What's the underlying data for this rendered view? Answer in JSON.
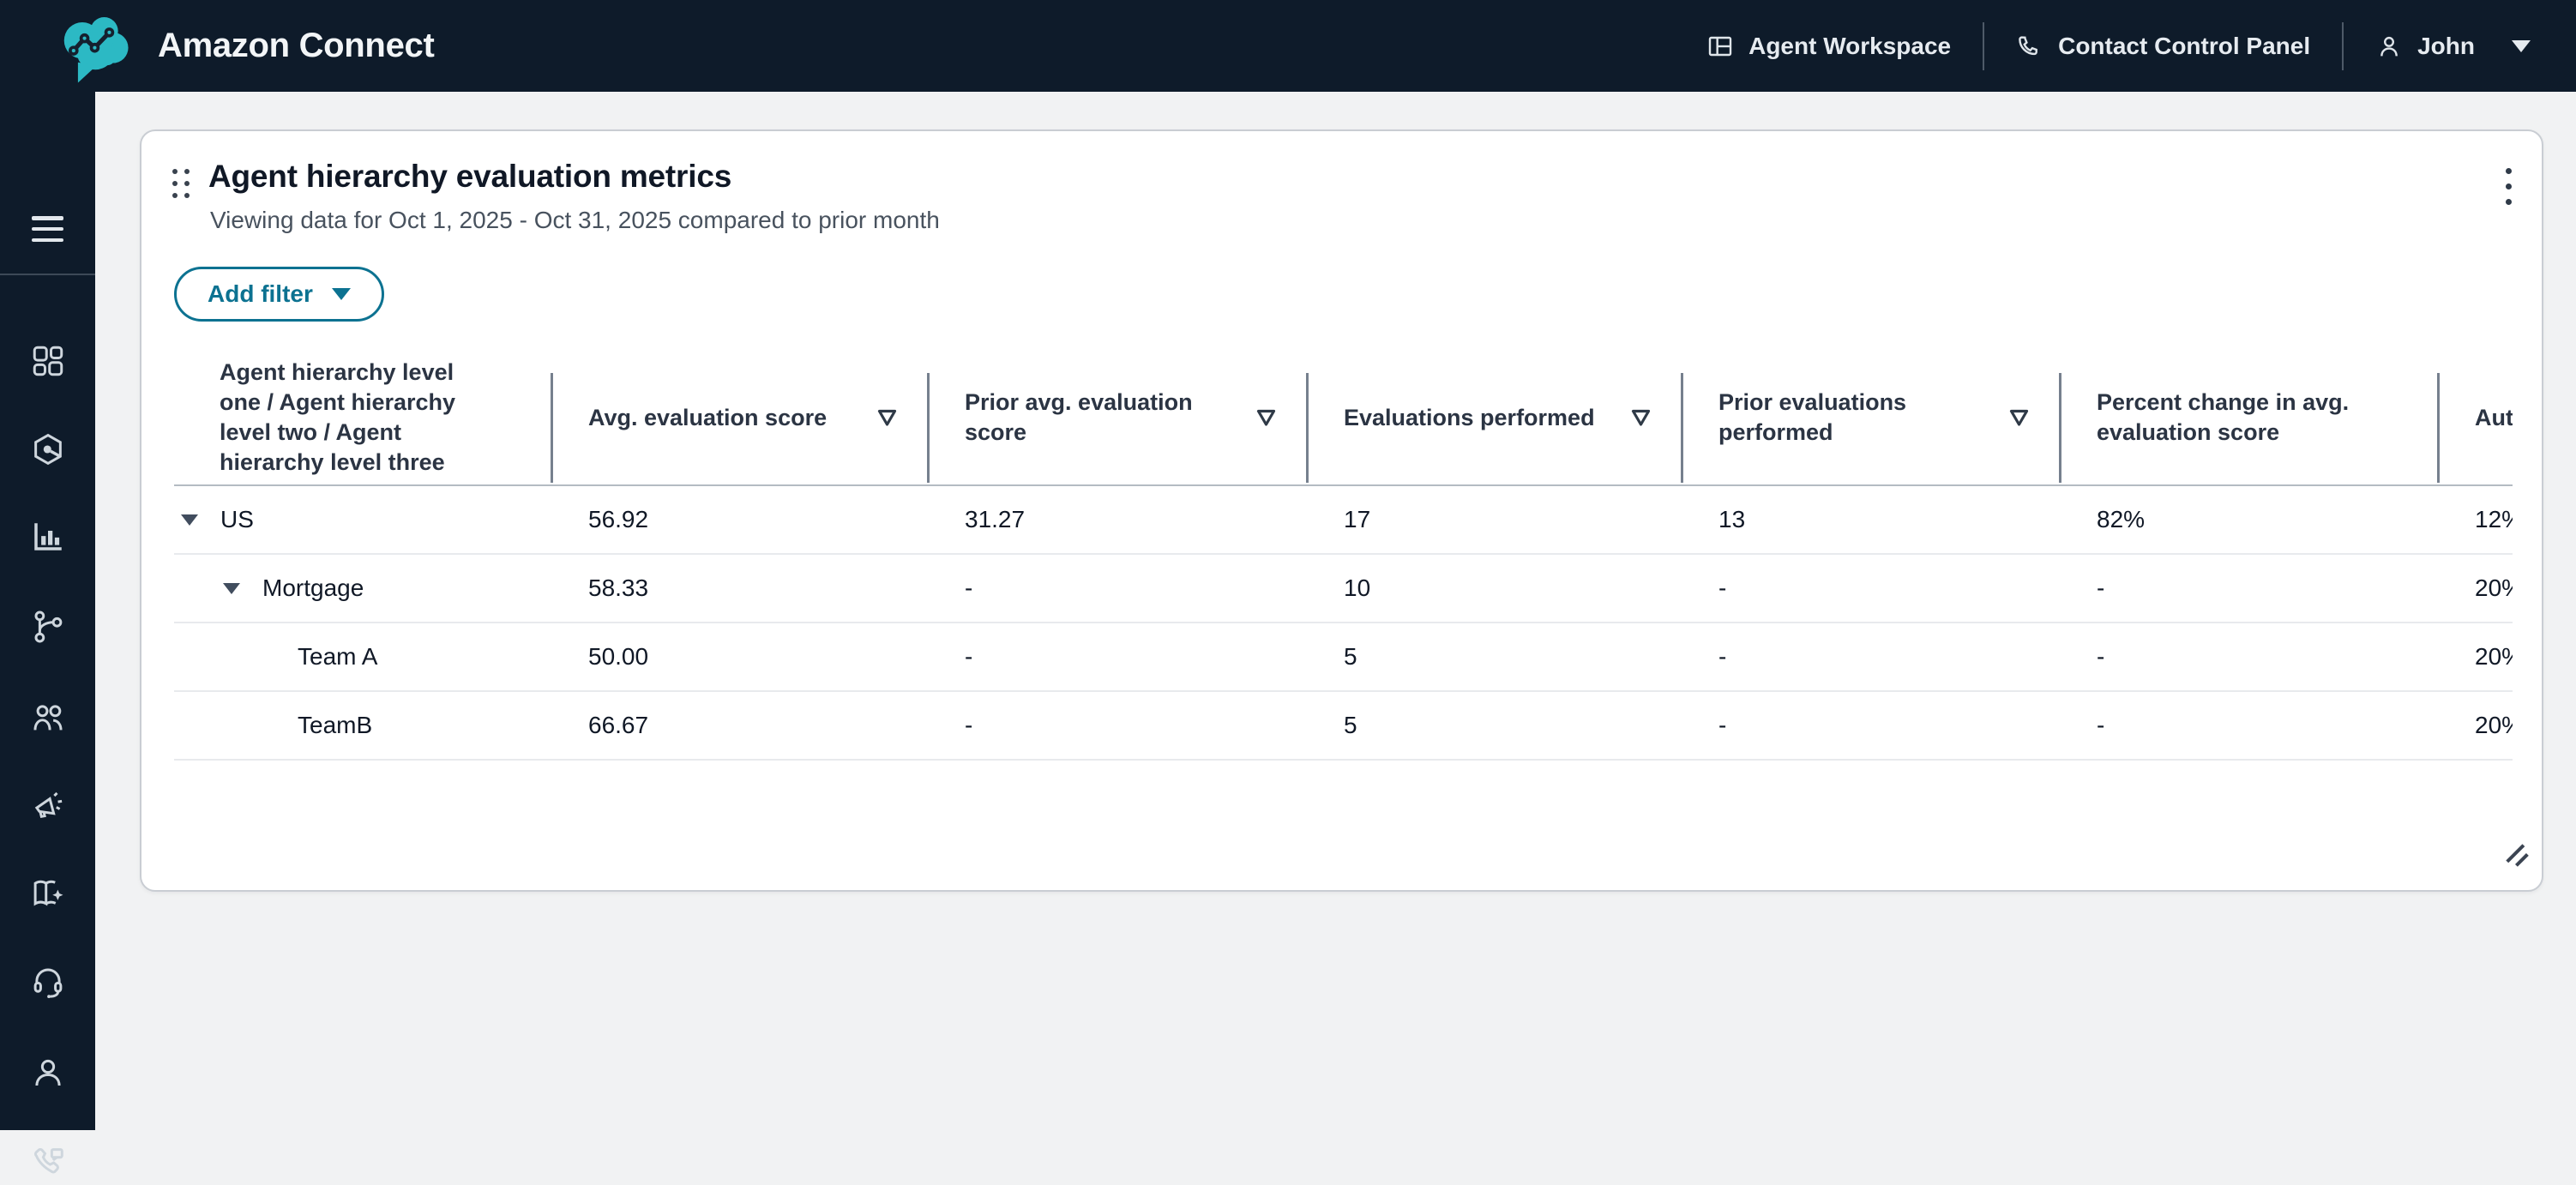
{
  "brand": {
    "name": "Amazon Connect"
  },
  "topnav": {
    "agent_workspace_label": "Agent Workspace",
    "contact_control_panel_label": "Contact Control Panel",
    "user_name": "John"
  },
  "sidebar": {
    "items": [
      "dashboard-grid",
      "routing-hexagon",
      "metrics-bar-chart",
      "flows-branch",
      "users-group",
      "campaigns-megaphone",
      "knowledge-book",
      "headset",
      "profile-person",
      "contact-phone-message"
    ]
  },
  "widget": {
    "title": "Agent hierarchy evaluation metrics",
    "subtitle": "Viewing data for Oct 1, 2025 - Oct 31, 2025 compared to prior month",
    "add_filter_label": "Add filter",
    "table": {
      "columns": [
        {
          "label": "Agent hierarchy level one / Agent hierarchy level two / Agent hierarchy level three",
          "filterable": false
        },
        {
          "label": "Avg. evaluation score",
          "filterable": true
        },
        {
          "label": "Prior avg. evaluation score",
          "filterable": true
        },
        {
          "label": "Evaluations performed",
          "filterable": true
        },
        {
          "label": "Prior evaluations performed",
          "filterable": true
        },
        {
          "label": "Percent change in avg. evaluation score",
          "filterable": false
        },
        {
          "label": "Aut",
          "filterable": false
        }
      ],
      "rows": [
        {
          "name": "US",
          "level": 0,
          "expandable": true,
          "values": [
            "56.92",
            "31.27",
            "17",
            "13",
            "82%",
            "12%"
          ]
        },
        {
          "name": "Mortgage",
          "level": 1,
          "expandable": true,
          "values": [
            "58.33",
            "-",
            "10",
            "-",
            "-",
            "20%"
          ]
        },
        {
          "name": "Team A",
          "level": 2,
          "expandable": false,
          "values": [
            "50.00",
            "-",
            "5",
            "-",
            "-",
            "20%"
          ]
        },
        {
          "name": "TeamB",
          "level": 2,
          "expandable": false,
          "values": [
            "66.67",
            "-",
            "5",
            "-",
            "-",
            "20%"
          ]
        }
      ]
    }
  },
  "colors": {
    "topbar_bg": "#0e1b2a",
    "brand_teal": "#2cb9c4",
    "accent": "#0c7291",
    "page_bg": "#f1f2f3",
    "card_border": "#c9cdd3",
    "header_text": "#2b3443",
    "cell_text": "#101826"
  }
}
